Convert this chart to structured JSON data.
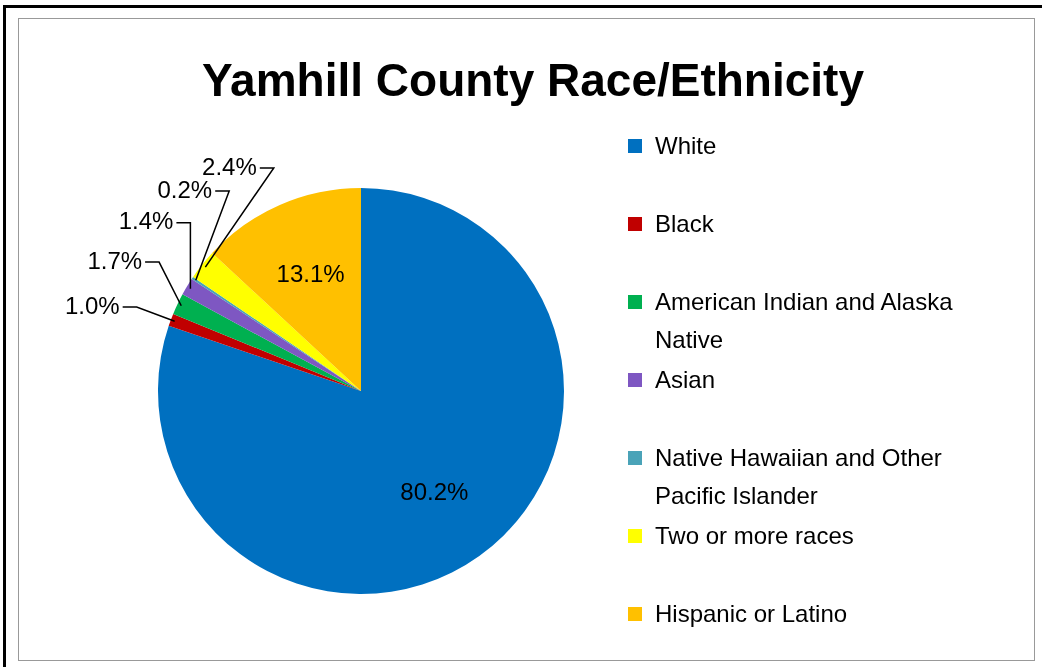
{
  "chart_data": {
    "type": "pie",
    "title": "Yamhill County Race/Ethnicity",
    "categories": [
      "White",
      "Black",
      "American Indian and Alaska Native",
      "Asian",
      "Native Hawaiian and Other Pacific Islander",
      "Two or more races",
      "Hispanic or Latino"
    ],
    "values": [
      80.2,
      1.0,
      1.7,
      1.4,
      0.2,
      2.4,
      13.1
    ],
    "colors": [
      "#0070c0",
      "#c00000",
      "#00b050",
      "#7e57c2",
      "#4aa3b8",
      "#ffff00",
      "#ffc000"
    ],
    "value_labels": [
      "80.2%",
      "1.0%",
      "1.7%",
      "1.4%",
      "0.2%",
      "2.4%",
      "13.1%"
    ],
    "legend": "right"
  }
}
